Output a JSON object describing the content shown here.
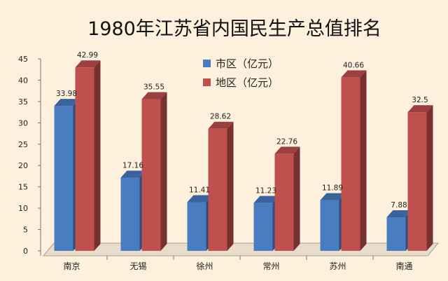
{
  "chart_data": {
    "type": "bar",
    "title": "1980年江苏省内国民生产总值排名",
    "categories": [
      "南京",
      "无锡",
      "徐州",
      "常州",
      "苏州",
      "南通"
    ],
    "series": [
      {
        "name": "市区（亿元）",
        "color": "#4a7cc2",
        "values": [
          33.98,
          17.16,
          11.41,
          11.23,
          11.89,
          7.88
        ]
      },
      {
        "name": "地区（亿元）",
        "color": "#c0504d",
        "values": [
          42.99,
          35.55,
          28.62,
          22.76,
          40.66,
          32.5
        ]
      }
    ],
    "data_labels": [
      [
        "33.98",
        "17.16",
        "11.41",
        "11.23",
        "11.89",
        "7.88"
      ],
      [
        "42.99",
        "35.55",
        "28.62",
        "22.76",
        "40.66",
        "32.5"
      ]
    ],
    "ylim": [
      0,
      45
    ],
    "yticks": [
      "0",
      "5",
      "10",
      "15",
      "20",
      "25",
      "30",
      "35",
      "40",
      "45"
    ],
    "grid": false,
    "legend_position": "top-center",
    "style": "3d-columns"
  }
}
